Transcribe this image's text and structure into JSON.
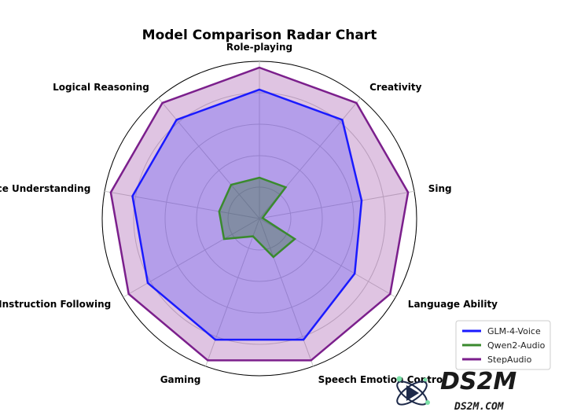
{
  "chart_data": {
    "type": "radar",
    "title": "Model Comparison Radar Chart",
    "categories": [
      "Role-playing",
      "Creativity",
      "Sing",
      "Language Ability",
      "Speech Emotion Control",
      "Gaming",
      "Voice Instruction Following",
      "Voice Understanding",
      "Logical Reasoning"
    ],
    "rlim": [
      0,
      5
    ],
    "grid": true,
    "series": [
      {
        "name": "GLM-4-Voice",
        "color": "#1a1aff",
        "values": [
          4.1,
          4.1,
          3.3,
          3.5,
          4.1,
          4.1,
          4.1,
          4.1,
          4.1
        ]
      },
      {
        "name": "Qwen2-Audio",
        "color": "#3a8a2e",
        "values": [
          1.3,
          1.3,
          0.1,
          1.3,
          1.3,
          0.6,
          1.3,
          1.3,
          1.4
        ]
      },
      {
        "name": "StepAudio",
        "color": "#7b1f8c",
        "values": [
          4.8,
          4.8,
          4.8,
          4.8,
          4.8,
          4.8,
          4.8,
          4.8,
          4.8
        ]
      }
    ],
    "legend": "bottom-right"
  },
  "brand": {
    "name": "DS2M",
    "url": "DS2M.COM"
  }
}
